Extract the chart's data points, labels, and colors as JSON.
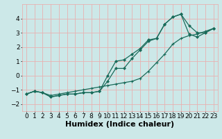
{
  "xlabel": "Humidex (Indice chaleur)",
  "background_color": "#cce8e8",
  "grid_color": "#e8b0b0",
  "line_color": "#1a6b5a",
  "x": [
    0,
    1,
    2,
    3,
    4,
    5,
    6,
    7,
    8,
    9,
    10,
    11,
    12,
    13,
    14,
    15,
    16,
    17,
    18,
    19,
    20,
    21,
    22,
    23
  ],
  "line1": [
    -1.3,
    -1.1,
    -1.2,
    -1.5,
    -1.4,
    -1.3,
    -1.3,
    -1.2,
    -1.2,
    -1.1,
    0.0,
    1.0,
    1.1,
    1.5,
    1.9,
    2.5,
    2.6,
    3.6,
    4.1,
    4.3,
    2.9,
    2.7,
    3.0,
    3.3
  ],
  "line2": [
    -1.3,
    -1.1,
    -1.2,
    -1.5,
    -1.4,
    -1.3,
    -1.3,
    -1.2,
    -1.2,
    -1.1,
    -0.4,
    0.5,
    0.5,
    1.2,
    1.8,
    2.4,
    2.6,
    3.6,
    4.1,
    4.3,
    3.5,
    3.0,
    3.0,
    3.3
  ],
  "line3": [
    -1.3,
    -1.1,
    -1.2,
    -1.4,
    -1.3,
    -1.2,
    -1.1,
    -1.0,
    -0.9,
    -0.8,
    -0.7,
    -0.6,
    -0.5,
    -0.4,
    -0.2,
    0.3,
    0.9,
    1.5,
    2.2,
    2.6,
    2.8,
    2.9,
    3.1,
    3.3
  ],
  "ylim": [
    -2.5,
    5.0
  ],
  "xlim": [
    -0.5,
    23.5
  ],
  "yticks": [
    -2,
    -1,
    0,
    1,
    2,
    3,
    4
  ],
  "xticks": [
    0,
    1,
    2,
    3,
    4,
    5,
    6,
    7,
    8,
    9,
    10,
    11,
    12,
    13,
    14,
    15,
    16,
    17,
    18,
    19,
    20,
    21,
    22,
    23
  ],
  "xlabel_fontsize": 8,
  "tick_fontsize": 6.5,
  "figsize": [
    3.2,
    2.0
  ],
  "dpi": 100
}
